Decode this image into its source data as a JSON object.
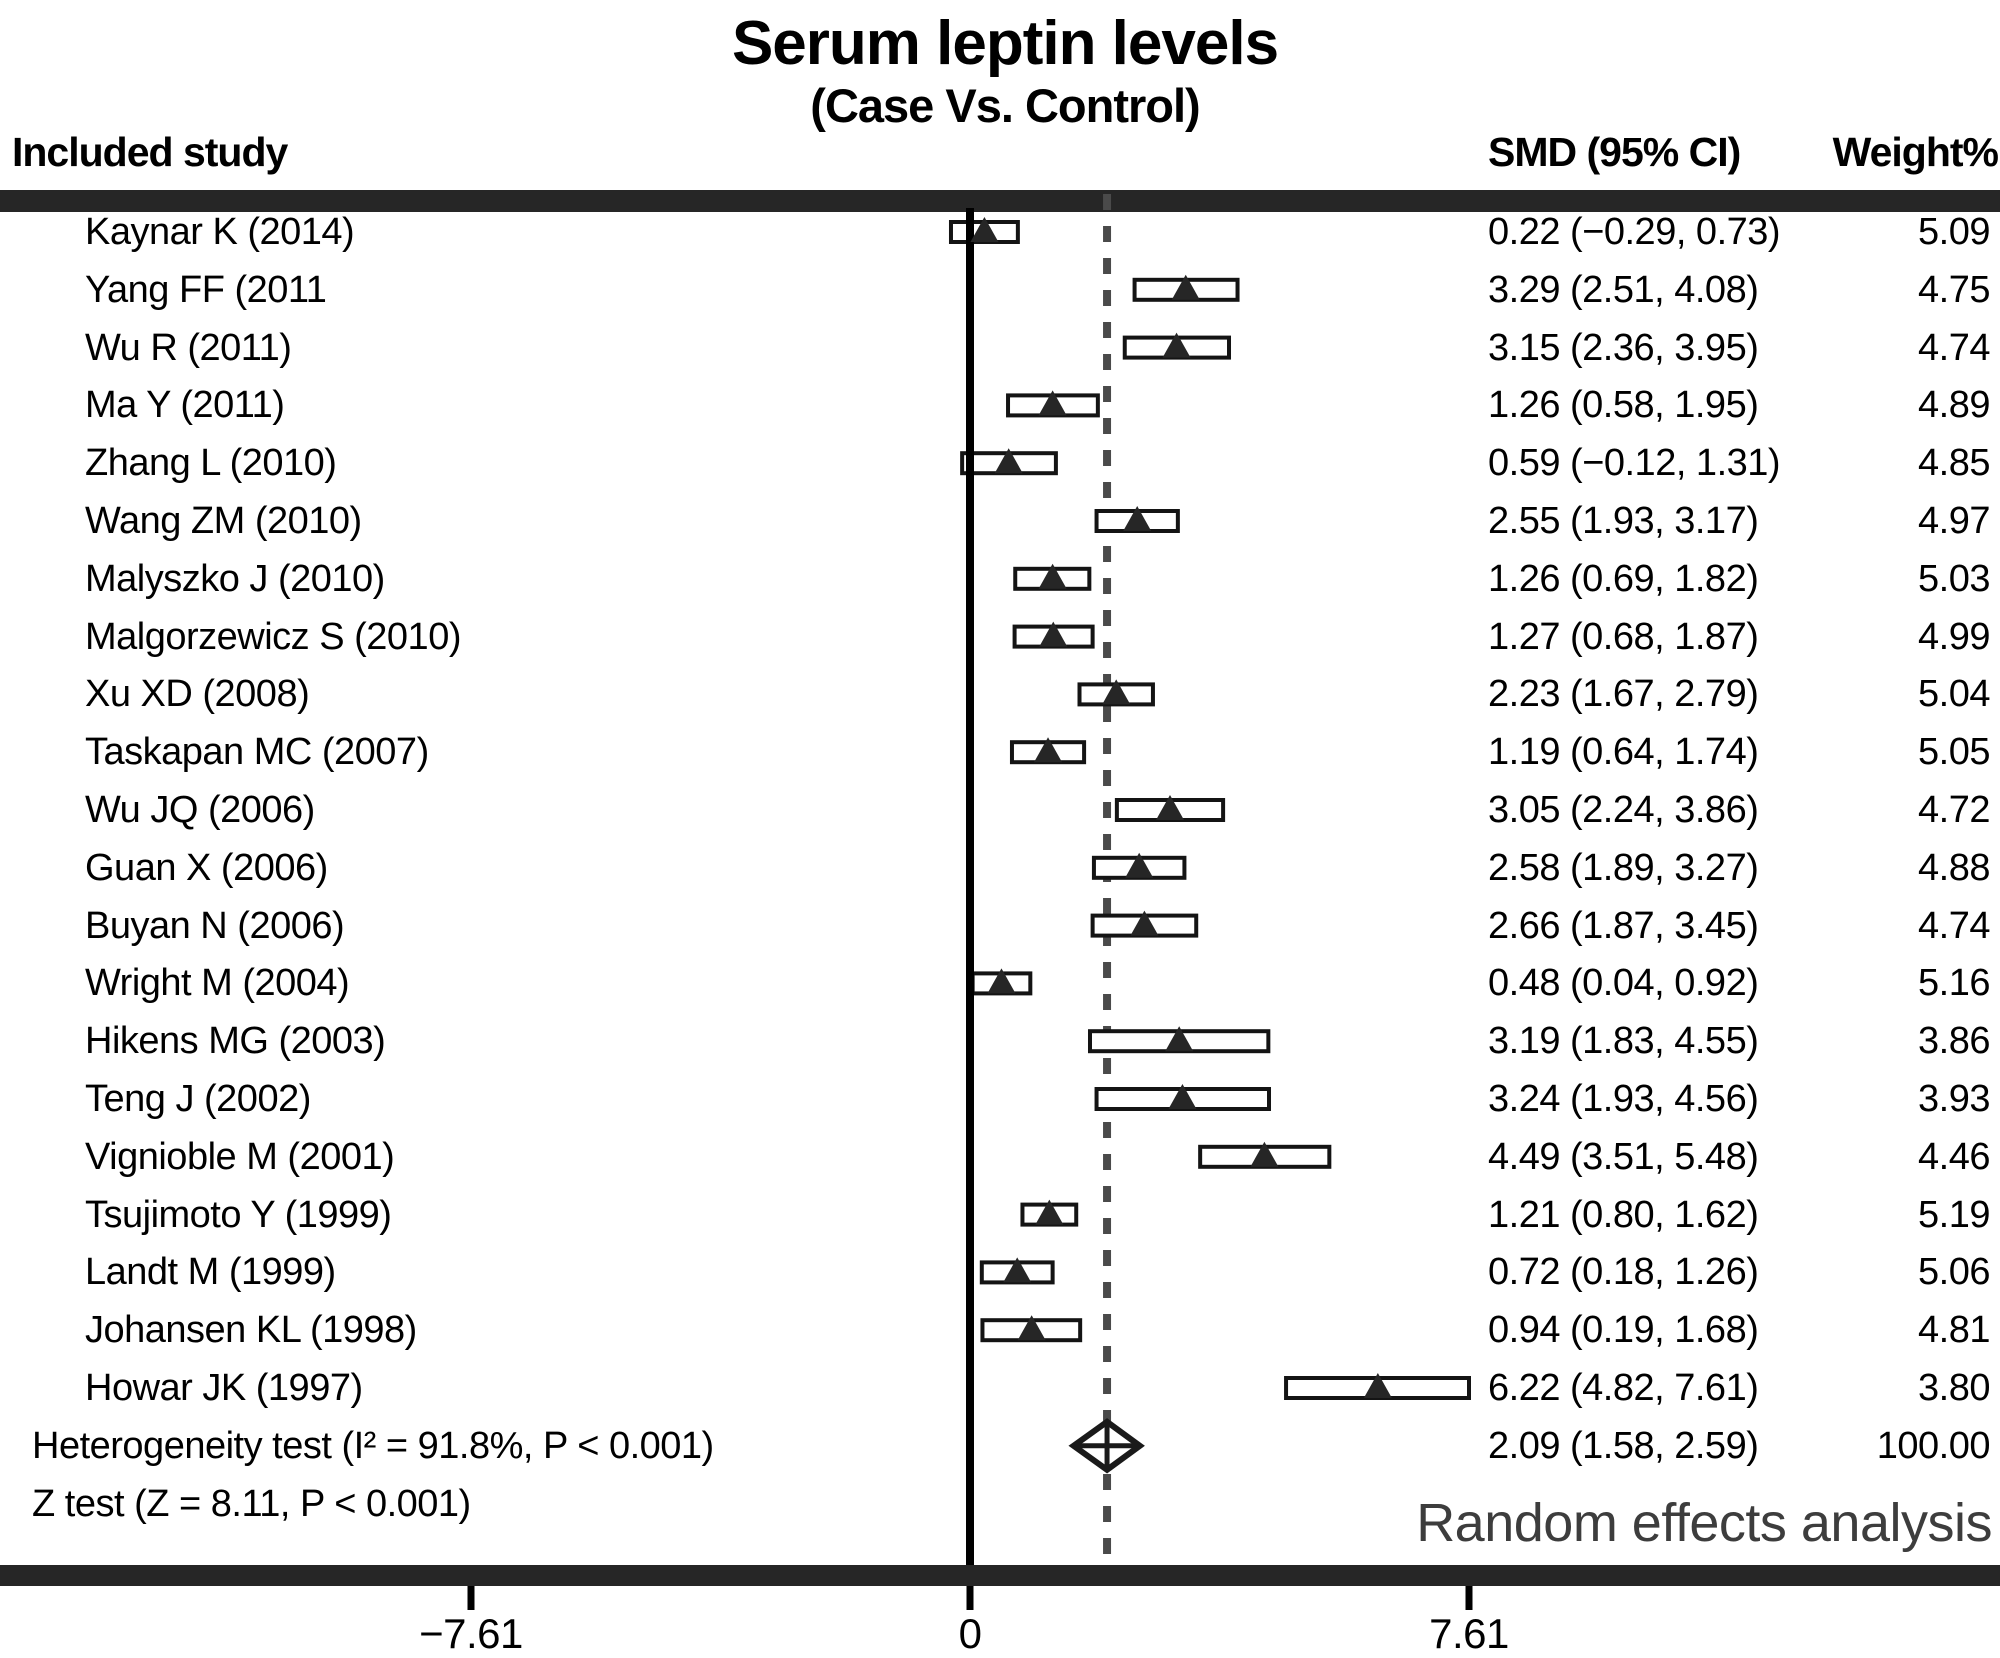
{
  "title": "Serum leptin levels",
  "subtitle": "(Case Vs. Control)",
  "columns": {
    "study": "Included study",
    "smd": "SMD (95% CI)",
    "weight": "Weight%"
  },
  "footer": {
    "heterogeneity": "Heterogeneity test (I² = 91.8%, P < 0.001)",
    "z_test": "Z test (Z = 8.11, P < 0.001)",
    "model_label": "Random effects analysis"
  },
  "colors": {
    "bar": "#262626",
    "zero_line": "#000000",
    "dashed_line": "#4a4a4a",
    "box_stroke": "#141414",
    "box_fill": "#ffffff",
    "triangle": "#262626",
    "diamond_stroke": "#1a1a1a",
    "model_label_text": "#3d3d3d",
    "text": "#000000"
  },
  "chart_data": {
    "type": "forest",
    "title": "Serum leptin levels",
    "subtitle": "(Case Vs. Control)",
    "xlabel": "SMD",
    "axis": {
      "min": -7.61,
      "max": 7.61,
      "ticks": [
        {
          "v": -7.61,
          "label": "−7.61"
        },
        {
          "v": 0,
          "label": "0"
        },
        {
          "v": 7.61,
          "label": "7.61"
        }
      ]
    },
    "pooled_line_value": 2.09,
    "studies": [
      {
        "name": "Kaynar K (2014)",
        "smd": 0.22,
        "ci": [
          -0.29,
          0.73
        ],
        "smd_label": "0.22 (−0.29, 0.73)",
        "weight": "5.09"
      },
      {
        "name": "Yang FF (2011",
        "smd": 3.29,
        "ci": [
          2.51,
          4.08
        ],
        "smd_label": "3.29 (2.51, 4.08)",
        "weight": "4.75"
      },
      {
        "name": "Wu R (2011)",
        "smd": 3.15,
        "ci": [
          2.36,
          3.95
        ],
        "smd_label": "3.15 (2.36, 3.95)",
        "weight": "4.74"
      },
      {
        "name": "Ma Y (2011)",
        "smd": 1.26,
        "ci": [
          0.58,
          1.95
        ],
        "smd_label": "1.26 (0.58, 1.95)",
        "weight": "4.89"
      },
      {
        "name": "Zhang L (2010)",
        "smd": 0.59,
        "ci": [
          -0.12,
          1.31
        ],
        "smd_label": "0.59 (−0.12, 1.31)",
        "weight": "4.85"
      },
      {
        "name": "Wang ZM (2010)",
        "smd": 2.55,
        "ci": [
          1.93,
          3.17
        ],
        "smd_label": "2.55 (1.93, 3.17)",
        "weight": "4.97"
      },
      {
        "name": "Malyszko J (2010)",
        "smd": 1.26,
        "ci": [
          0.69,
          1.82
        ],
        "smd_label": "1.26 (0.69, 1.82)",
        "weight": "5.03"
      },
      {
        "name": "Malgorzewicz S (2010)",
        "smd": 1.27,
        "ci": [
          0.68,
          1.87
        ],
        "smd_label": "1.27 (0.68, 1.87)",
        "weight": "4.99"
      },
      {
        "name": "Xu XD (2008)",
        "smd": 2.23,
        "ci": [
          1.67,
          2.79
        ],
        "smd_label": "2.23 (1.67, 2.79)",
        "weight": "5.04"
      },
      {
        "name": "Taskapan MC (2007)",
        "smd": 1.19,
        "ci": [
          0.64,
          1.74
        ],
        "smd_label": "1.19 (0.64, 1.74)",
        "weight": "5.05"
      },
      {
        "name": "Wu JQ (2006)",
        "smd": 3.05,
        "ci": [
          2.24,
          3.86
        ],
        "smd_label": "3.05 (2.24, 3.86)",
        "weight": "4.72"
      },
      {
        "name": "Guan X (2006)",
        "smd": 2.58,
        "ci": [
          1.89,
          3.27
        ],
        "smd_label": "2.58 (1.89, 3.27)",
        "weight": "4.88"
      },
      {
        "name": "Buyan N (2006)",
        "smd": 2.66,
        "ci": [
          1.87,
          3.45
        ],
        "smd_label": "2.66 (1.87, 3.45)",
        "weight": "4.74"
      },
      {
        "name": "Wright M (2004)",
        "smd": 0.48,
        "ci": [
          0.04,
          0.92
        ],
        "smd_label": "0.48 (0.04, 0.92)",
        "weight": "5.16"
      },
      {
        "name": "Hikens MG (2003)",
        "smd": 3.19,
        "ci": [
          1.83,
          4.55
        ],
        "smd_label": "3.19 (1.83, 4.55)",
        "weight": "3.86"
      },
      {
        "name": "Teng J (2002)",
        "smd": 3.24,
        "ci": [
          1.93,
          4.56
        ],
        "smd_label": "3.24 (1.93, 4.56)",
        "weight": "3.93"
      },
      {
        "name": "Vignioble M (2001)",
        "smd": 4.49,
        "ci": [
          3.51,
          5.48
        ],
        "smd_label": "4.49 (3.51, 5.48)",
        "weight": "4.46"
      },
      {
        "name": "Tsujimoto Y (1999)",
        "smd": 1.21,
        "ci": [
          0.8,
          1.62
        ],
        "smd_label": "1.21 (0.80, 1.62)",
        "weight": "5.19"
      },
      {
        "name": "Landt M (1999)",
        "smd": 0.72,
        "ci": [
          0.18,
          1.26
        ],
        "smd_label": "0.72 (0.18, 1.26)",
        "weight": "5.06"
      },
      {
        "name": "Johansen KL (1998)",
        "smd": 0.94,
        "ci": [
          0.19,
          1.68
        ],
        "smd_label": "0.94 (0.19, 1.68)",
        "weight": "4.81"
      },
      {
        "name": "Howar JK (1997)",
        "smd": 6.22,
        "ci": [
          4.82,
          7.61
        ],
        "smd_label": "6.22 (4.82, 7.61)",
        "weight": "3.80"
      }
    ],
    "pooled": {
      "smd": 2.09,
      "ci": [
        1.58,
        2.59
      ],
      "smd_label": "2.09 (1.58, 2.59)",
      "weight": "100.00",
      "model": "Random effects analysis"
    },
    "heterogeneity": {
      "i_squared": "91.8%",
      "p": "< 0.001"
    },
    "z_test": {
      "z": "8.11",
      "p": "< 0.001"
    }
  }
}
